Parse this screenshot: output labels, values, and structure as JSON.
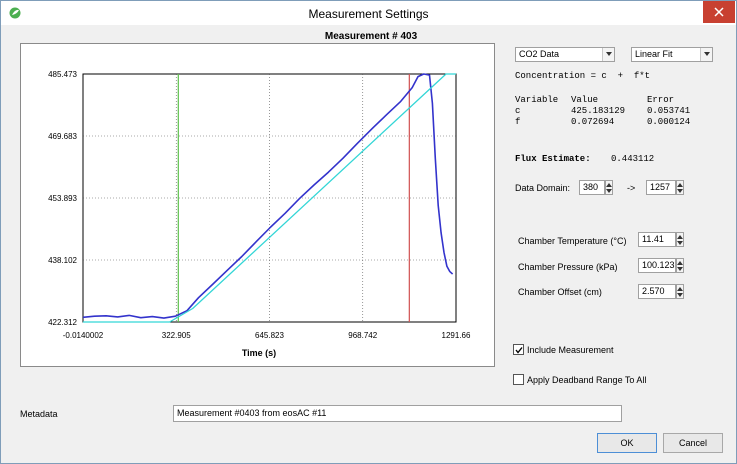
{
  "window": {
    "title": "Measurement Settings",
    "close_icon": "close-icon",
    "colors": {
      "close_bg": "#c84031",
      "line_blue": "#3333cc",
      "fit_cyan": "#33d6d6",
      "marker_green": "#5cbf4a",
      "marker_red": "#d05050"
    }
  },
  "measurement_title": "Measurement # 403",
  "chart_data": {
    "type": "line",
    "xlabel": "Time (s)",
    "ylabel": "",
    "x_ticks": [
      "-0.0140002",
      "322.905",
      "645.823",
      "968.742",
      "1291.66"
    ],
    "y_ticks": [
      "485.473",
      "469.683",
      "453.893",
      "438.102",
      "422.312"
    ],
    "xlim": [
      -0.0140002,
      1291.66
    ],
    "ylim": [
      422.312,
      485.473
    ],
    "grid": true,
    "markers": [
      {
        "name": "domain-start",
        "x": 330,
        "color": "#5cbf4a"
      },
      {
        "name": "domain-end",
        "x": 1130,
        "color": "#d05050"
      }
    ],
    "series": [
      {
        "kind": "measured",
        "color": "#3333cc",
        "x": [
          0,
          40,
          80,
          120,
          160,
          200,
          240,
          280,
          320,
          360,
          400,
          450,
          500,
          550,
          600,
          650,
          700,
          750,
          800,
          850,
          900,
          950,
          1000,
          1050,
          1100,
          1140,
          1160,
          1180,
          1200,
          1210,
          1220,
          1230,
          1240,
          1250,
          1260,
          1270,
          1280
        ],
        "y": [
          423.5,
          423.8,
          423.9,
          423.6,
          424.0,
          423.4,
          423.7,
          423.3,
          423.8,
          425.2,
          428.5,
          432.0,
          435.5,
          439.0,
          442.8,
          446.5,
          450.0,
          453.8,
          457.2,
          460.5,
          464.0,
          467.8,
          471.5,
          475.0,
          478.5,
          482.0,
          484.8,
          485.47,
          485.2,
          478.0,
          464.0,
          452.0,
          445.0,
          440.0,
          436.5,
          435.2,
          434.5
        ]
      },
      {
        "kind": "linear-fit",
        "color": "#33d6d6",
        "x": [
          -0.0140002,
          300,
          380,
          1257,
          1291.66
        ],
        "y": [
          422.312,
          422.312,
          425.74,
          485.473,
          485.473
        ]
      }
    ]
  },
  "controls": {
    "gas_select": {
      "value": "CO2 Data",
      "arrow": "chevron-down-icon"
    },
    "fit_select": {
      "value": "Linear Fit",
      "arrow": "chevron-down-icon"
    }
  },
  "equation": "Concentration = c  +  f*t",
  "fit_table": {
    "headers": [
      "Variable",
      "Value",
      "Error"
    ],
    "rows": [
      [
        "c",
        "425.183129",
        "0.053741"
      ],
      [
        "f",
        "0.072694",
        "0.000124"
      ]
    ]
  },
  "flux": {
    "label": "Flux Estimate:",
    "value": "0.443112"
  },
  "data_domain": {
    "label": "Data Domain:",
    "start": "380",
    "arrow": "->",
    "end": "1257"
  },
  "chamber": {
    "temperature": {
      "label": "Chamber Temperature (°C)",
      "value": "11.41"
    },
    "pressure": {
      "label": "Chamber Pressure (kPa)",
      "value": "100.123"
    },
    "offset": {
      "label": "Chamber Offset (cm)",
      "value": "2.570"
    }
  },
  "checks": {
    "include": {
      "label": "Include Measurement",
      "checked": true
    },
    "deadband": {
      "label": "Apply Deadband Range To All",
      "checked": false
    }
  },
  "metadata": {
    "label": "Metadata",
    "value": "Measurement #0403  from eosAC #11"
  },
  "buttons": {
    "ok": "OK",
    "cancel": "Cancel"
  }
}
